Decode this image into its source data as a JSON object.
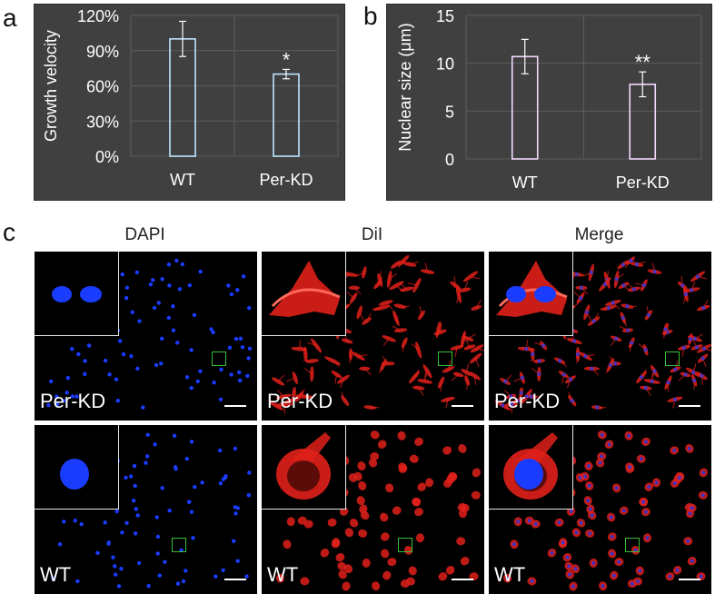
{
  "panels": {
    "a": "a",
    "b": "b",
    "c": "c"
  },
  "chart_data": [
    {
      "type": "bar",
      "panel": "a",
      "categories": [
        "WT",
        "Per-KD"
      ],
      "values": [
        100,
        70
      ],
      "errors": [
        15,
        4
      ],
      "significance": [
        "",
        "*"
      ],
      "ylabel": "Growth velocity",
      "ylim": [
        0,
        120
      ],
      "yticks": [
        0,
        30,
        60,
        90,
        120
      ],
      "ytick_labels": [
        "0%",
        "30%",
        "60%",
        "90%",
        "120%"
      ],
      "gridlines": true,
      "colors": {
        "background": "#404040",
        "bar_edge": "#bfe6ff",
        "text": "#ffffff"
      }
    },
    {
      "type": "bar",
      "panel": "b",
      "categories": [
        "WT",
        "Per-KD"
      ],
      "values": [
        10.7,
        7.8
      ],
      "errors": [
        1.8,
        1.3
      ],
      "significance": [
        "",
        "**"
      ],
      "ylabel": "Nuclear size (μm)",
      "ylim": [
        0,
        15
      ],
      "yticks": [
        0,
        5,
        10,
        15
      ],
      "ytick_labels": [
        "0",
        "5",
        "10",
        "15"
      ],
      "gridlines": true,
      "colors": {
        "background": "#404040",
        "bar_edge": "#f2d8ff",
        "text": "#ffffff"
      }
    }
  ],
  "micrographs": {
    "columns": [
      "DAPI",
      "DiI",
      "Merge"
    ],
    "rows": [
      "Per-KD",
      "WT"
    ],
    "colors": {
      "nucleus": "#1a3cff",
      "membrane": "#e0201a",
      "roi": "#39c139",
      "scale_bar": "#ffffff"
    }
  }
}
